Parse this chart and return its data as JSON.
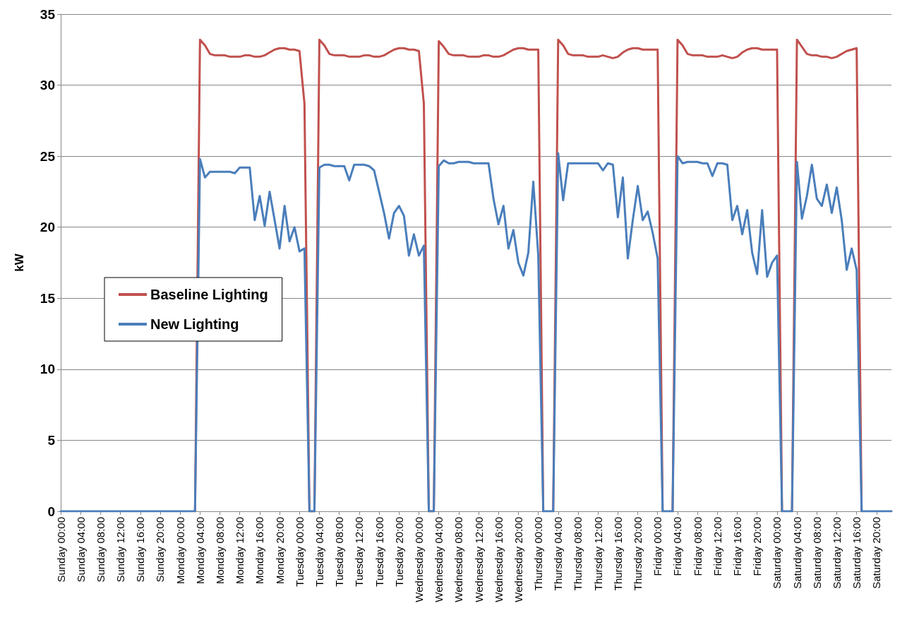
{
  "chart_data": {
    "type": "line",
    "ylabel": "kW",
    "ylim": [
      0,
      35
    ],
    "yticks": [
      0,
      5,
      10,
      15,
      20,
      25,
      30,
      35
    ],
    "categories": [
      "Sunday 00:00",
      null,
      null,
      null,
      "Sunday 04:00",
      null,
      null,
      null,
      "Sunday 08:00",
      null,
      null,
      null,
      "Sunday 12:00",
      null,
      null,
      null,
      "Sunday 16:00",
      null,
      null,
      null,
      "Sunday 20:00",
      null,
      null,
      null,
      "Monday 00:00",
      null,
      null,
      null,
      "Monday 04:00",
      null,
      null,
      null,
      "Monday 08:00",
      null,
      null,
      null,
      "Monday 12:00",
      null,
      null,
      null,
      "Monday 16:00",
      null,
      null,
      null,
      "Monday 20:00",
      null,
      null,
      null,
      "Tuesday 00:00",
      null,
      null,
      null,
      "Tuesday 04:00",
      null,
      null,
      null,
      "Tuesday 08:00",
      null,
      null,
      null,
      "Tuesday 12:00",
      null,
      null,
      null,
      "Tuesday 16:00",
      null,
      null,
      null,
      "Tuesday 20:00",
      null,
      null,
      null,
      "Wednesday 00:00",
      null,
      null,
      null,
      "Wednesday 04:00",
      null,
      null,
      null,
      "Wednesday 08:00",
      null,
      null,
      null,
      "Wednesday 12:00",
      null,
      null,
      null,
      "Wednesday 16:00",
      null,
      null,
      null,
      "Wednesday 20:00",
      null,
      null,
      null,
      "Thursday 00:00",
      null,
      null,
      null,
      "Thursday 04:00",
      null,
      null,
      null,
      "Thursday 08:00",
      null,
      null,
      null,
      "Thursday 12:00",
      null,
      null,
      null,
      "Thursday 16:00",
      null,
      null,
      null,
      "Thursday 20:00",
      null,
      null,
      null,
      "Friday 00:00",
      null,
      null,
      null,
      "Friday 04:00",
      null,
      null,
      null,
      "Friday 08:00",
      null,
      null,
      null,
      "Friday 12:00",
      null,
      null,
      null,
      "Friday 16:00",
      null,
      null,
      null,
      "Friday 20:00",
      null,
      null,
      null,
      "Saturday 00:00",
      null,
      null,
      null,
      "Saturday 04:00",
      null,
      null,
      null,
      "Saturday 08:00",
      null,
      null,
      null,
      "Saturday 12:00",
      null,
      null,
      null,
      "Saturday 16:00",
      null,
      null,
      null,
      "Saturday 20:00",
      null,
      null,
      null
    ],
    "grid": "y",
    "legend": "left",
    "marker": "none",
    "line_style": "solid",
    "series": [
      {
        "name": "Baseline Lighting",
        "color": "#c0504d",
        "values": [
          null,
          null,
          null,
          null,
          null,
          null,
          null,
          null,
          null,
          null,
          null,
          null,
          null,
          null,
          null,
          null,
          null,
          null,
          null,
          null,
          null,
          null,
          null,
          null,
          null,
          null,
          null,
          0,
          33.2,
          32.8,
          32.2,
          32.1,
          32.1,
          32.1,
          32.0,
          32.0,
          32.0,
          32.1,
          32.1,
          32.0,
          32.0,
          32.1,
          32.3,
          32.5,
          32.6,
          32.6,
          32.5,
          32.5,
          32.4,
          28.7,
          0,
          0,
          33.2,
          32.8,
          32.2,
          32.1,
          32.1,
          32.1,
          32.0,
          32.0,
          32.0,
          32.1,
          32.1,
          32.0,
          32.0,
          32.1,
          32.3,
          32.5,
          32.6,
          32.6,
          32.5,
          32.5,
          32.4,
          28.7,
          0,
          0,
          33.1,
          32.7,
          32.2,
          32.1,
          32.1,
          32.1,
          32.0,
          32.0,
          32.0,
          32.1,
          32.1,
          32.0,
          32.0,
          32.1,
          32.3,
          32.5,
          32.6,
          32.6,
          32.5,
          32.5,
          32.5,
          0,
          null,
          0,
          33.2,
          32.8,
          32.2,
          32.1,
          32.1,
          32.1,
          32.0,
          32.0,
          32.0,
          32.1,
          32.0,
          31.9,
          32.0,
          32.3,
          32.5,
          32.6,
          32.6,
          32.5,
          32.5,
          32.5,
          32.5,
          0,
          null,
          0,
          33.2,
          32.8,
          32.2,
          32.1,
          32.1,
          32.1,
          32.0,
          32.0,
          32.0,
          32.1,
          32.0,
          31.9,
          32.0,
          32.3,
          32.5,
          32.6,
          32.6,
          32.5,
          32.5,
          32.5,
          32.5,
          0,
          null,
          0,
          33.2,
          32.7,
          32.2,
          32.1,
          32.1,
          32.0,
          32.0,
          31.9,
          32.0,
          32.2,
          32.4,
          32.5,
          32.6,
          0,
          null,
          null,
          null,
          null,
          null,
          null
        ]
      },
      {
        "name": "New Lighting",
        "color": "#4a7ebb",
        "values": [
          0,
          0,
          0,
          0,
          0,
          0,
          0,
          0,
          0,
          0,
          0,
          0,
          0,
          0,
          0,
          0,
          0,
          0,
          0,
          0,
          0,
          0,
          0,
          0,
          0,
          0,
          0,
          0,
          24.8,
          23.5,
          23.9,
          23.9,
          23.9,
          23.9,
          23.9,
          23.8,
          24.2,
          24.2,
          24.2,
          20.5,
          22.2,
          20.1,
          22.5,
          20.5,
          18.5,
          21.5,
          19.0,
          20.0,
          18.3,
          18.5,
          0,
          0,
          24.2,
          24.4,
          24.4,
          24.3,
          24.3,
          24.3,
          23.3,
          24.4,
          24.4,
          24.4,
          24.3,
          24.0,
          22.5,
          21.0,
          19.2,
          21.0,
          21.5,
          20.8,
          18.0,
          19.5,
          18.0,
          18.7,
          0,
          0,
          24.3,
          24.7,
          24.5,
          24.5,
          24.6,
          24.6,
          24.6,
          24.5,
          24.5,
          24.5,
          24.5,
          22.0,
          20.2,
          21.5,
          18.5,
          19.8,
          17.5,
          16.6,
          18.2,
          23.2,
          18.0,
          0,
          0,
          0,
          25.2,
          21.9,
          24.5,
          24.5,
          24.5,
          24.5,
          24.5,
          24.5,
          24.5,
          24.0,
          24.5,
          24.4,
          20.7,
          23.5,
          17.8,
          20.5,
          22.9,
          20.5,
          21.1,
          19.6,
          17.8,
          0,
          0,
          0,
          25.0,
          24.5,
          24.6,
          24.6,
          24.6,
          24.5,
          24.5,
          23.6,
          24.5,
          24.5,
          24.4,
          20.5,
          21.5,
          19.5,
          21.2,
          18.2,
          16.7,
          21.2,
          16.5,
          17.5,
          18.0,
          0,
          0,
          0,
          24.6,
          20.6,
          22.2,
          24.4,
          22.0,
          21.5,
          23.0,
          21.0,
          22.8,
          20.5,
          17.0,
          18.5,
          17.0,
          0,
          0,
          0,
          0,
          0,
          0,
          0
        ]
      }
    ]
  }
}
